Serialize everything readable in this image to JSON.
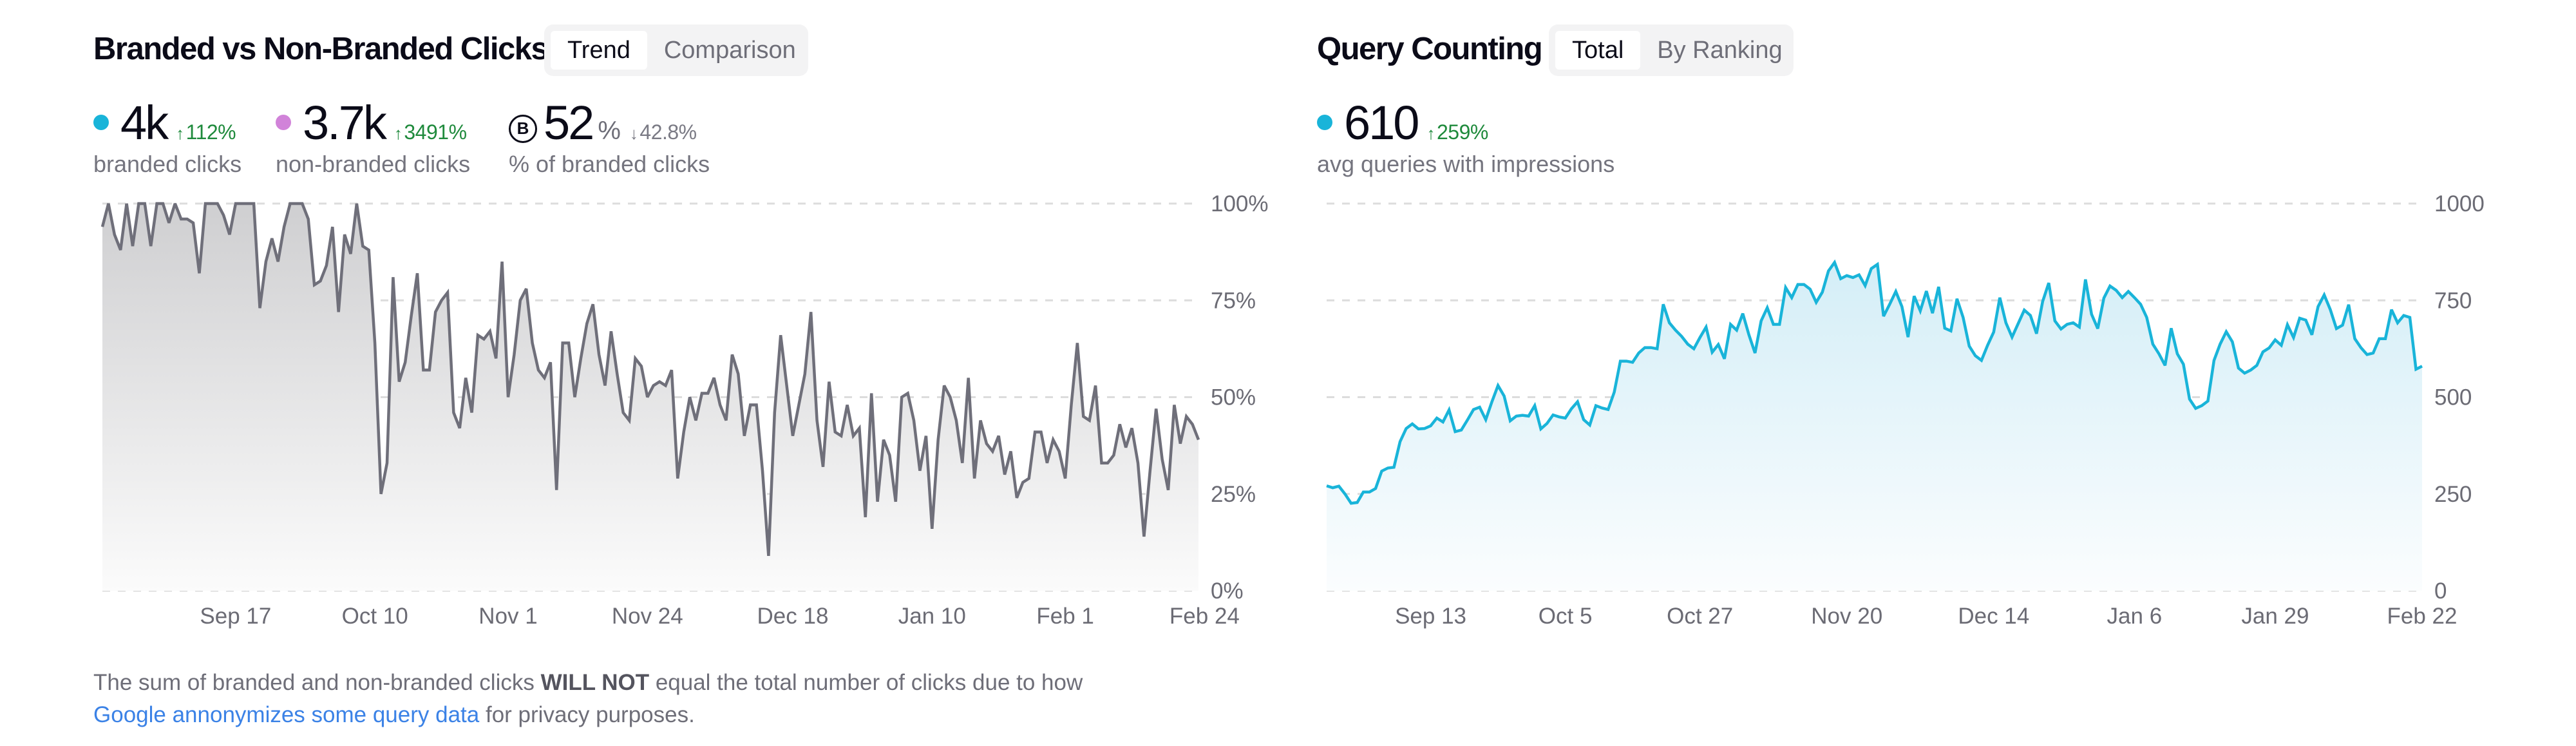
{
  "left_panel": {
    "title": "Branded vs Non-Branded Clicks",
    "tabs": [
      {
        "label": "Trend",
        "active": true
      },
      {
        "label": "Comparison",
        "active": false
      }
    ],
    "stats": [
      {
        "value": "4k",
        "delta": "112%",
        "delta_dir": "up",
        "label": "branded clicks",
        "dot_color": "#19b4d9"
      },
      {
        "value": "3.7k",
        "delta": "3491%",
        "delta_dir": "up",
        "label": "non-branded clicks",
        "dot_color": "#d183d9"
      },
      {
        "icon": "branded-b-icon",
        "icon_letter": "B",
        "value": "52",
        "unit": "%",
        "delta": "42.8%",
        "delta_dir": "down",
        "label": "% of branded clicks"
      }
    ],
    "arrow_up": "↑",
    "arrow_down": "↓"
  },
  "right_panel": {
    "title": "Query Counting",
    "tabs": [
      {
        "label": "Total",
        "active": true
      },
      {
        "label": "By Ranking",
        "active": false
      }
    ],
    "stats": [
      {
        "value": "610",
        "delta": "259%",
        "delta_dir": "up",
        "label": "avg queries with impressions",
        "dot_color": "#19b4d9"
      }
    ]
  },
  "footer": {
    "text_before": "The sum of branded and non-branded clicks ",
    "bold": "WILL NOT",
    "text_after": " equal the total number of clicks due to how",
    "link": "Google annonymizes some query data",
    "text_end": " for privacy purposes."
  },
  "colors": {
    "line_gray": "#6f6f7a",
    "line_cyan": "#19b4d9",
    "grid": "#dcdcdc",
    "link": "#3b82e6",
    "up": "#1f8a3c"
  },
  "chart_data": [
    {
      "type": "area",
      "title": "Branded vs Non-Branded Clicks",
      "ylabel": "% of branded clicks",
      "y_axis_position": "right",
      "ylim": [
        0,
        100
      ],
      "yticks": [
        0,
        25,
        50,
        75,
        100
      ],
      "ytick_labels": [
        "0%",
        "25%",
        "50%",
        "75%",
        "100%"
      ],
      "xtick_labels": [
        "Sep 17",
        "Oct 10",
        "Nov 1",
        "Nov 24",
        "Dec 18",
        "Jan 10",
        "Feb 1",
        "Feb 24"
      ],
      "xtick_index": [
        22,
        45,
        67,
        90,
        114,
        137,
        159,
        182
      ],
      "grid": true,
      "legend": "none",
      "series": [
        {
          "name": "% of branded clicks",
          "color": "#6f6f7a",
          "values": [
            94,
            100,
            92,
            88,
            100,
            89,
            100,
            100,
            89,
            100,
            100,
            95,
            100,
            96,
            96,
            95,
            82,
            100,
            100,
            100,
            97,
            92,
            100,
            100,
            100,
            100,
            73,
            85,
            91,
            85,
            94,
            100,
            100,
            100,
            96,
            79,
            80,
            84,
            94,
            72,
            92,
            87,
            100,
            89,
            88,
            64,
            25,
            33,
            81,
            54,
            59,
            71,
            82,
            57,
            57,
            72,
            75,
            77,
            46,
            42,
            55,
            46,
            66,
            65,
            67,
            60,
            85,
            50,
            61,
            75,
            78,
            64,
            57,
            55,
            59,
            26,
            64,
            64,
            50,
            60,
            69,
            74,
            61,
            53,
            67,
            56,
            46,
            44,
            60,
            58,
            50,
            53,
            54,
            53,
            57,
            29,
            41,
            50,
            44,
            51,
            51,
            55,
            48,
            44,
            61,
            56,
            40,
            48,
            48,
            31,
            9,
            46,
            66,
            53,
            40,
            48,
            56,
            72,
            44,
            32,
            54,
            41,
            40,
            48,
            40,
            42,
            19,
            51,
            23,
            39,
            35,
            23,
            50,
            51,
            44,
            31,
            40,
            16,
            39,
            53,
            50,
            44,
            33,
            55,
            29,
            44,
            38,
            36,
            40,
            30,
            36,
            24,
            28,
            29,
            41,
            41,
            33,
            39,
            36,
            29,
            48,
            64,
            45,
            44,
            53,
            33,
            33,
            35,
            43,
            37,
            42,
            33,
            14,
            31,
            47,
            34,
            26,
            48,
            38,
            45,
            43,
            39
          ]
        }
      ]
    },
    {
      "type": "area",
      "title": "Query Counting",
      "ylabel": "avg queries with impressions",
      "y_axis_position": "right",
      "ylim": [
        0,
        1000
      ],
      "yticks": [
        0,
        250,
        500,
        750,
        1000
      ],
      "ytick_labels": [
        "0",
        "250",
        "500",
        "750",
        "1000"
      ],
      "xtick_labels": [
        "Sep 13",
        "Oct 5",
        "Oct 27",
        "Nov 20",
        "Dec 14",
        "Jan 6",
        "Jan 29",
        "Feb 22"
      ],
      "xtick_index": [
        17,
        39,
        61,
        85,
        109,
        132,
        155,
        179
      ],
      "grid": true,
      "legend": "none",
      "series": [
        {
          "name": "avg queries with impressions",
          "color": "#19b4d9",
          "values": [
            271,
            266,
            270,
            250,
            226,
            228,
            255,
            255,
            264,
            309,
            317,
            319,
            385,
            419,
            431,
            418,
            419,
            426,
            446,
            436,
            467,
            411,
            415,
            441,
            468,
            474,
            442,
            488,
            530,
            503,
            439,
            451,
            453,
            451,
            478,
            418,
            432,
            454,
            449,
            446,
            470,
            488,
            442,
            428,
            478,
            472,
            468,
            513,
            593,
            593,
            590,
            614,
            628,
            628,
            625,
            740,
            692,
            673,
            657,
            637,
            625,
            654,
            681,
            616,
            636,
            599,
            688,
            673,
            716,
            661,
            614,
            697,
            731,
            688,
            688,
            783,
            757,
            791,
            791,
            779,
            745,
            771,
            826,
            848,
            806,
            814,
            809,
            816,
            788,
            832,
            843,
            709,
            740,
            773,
            734,
            655,
            761,
            723,
            774,
            717,
            785,
            678,
            671,
            754,
            706,
            632,
            607,
            595,
            634,
            668,
            757,
            692,
            655,
            690,
            725,
            711,
            664,
            747,
            795,
            697,
            676,
            688,
            692,
            681,
            804,
            714,
            677,
            756,
            787,
            776,
            757,
            773,
            757,
            740,
            706,
            637,
            612,
            582,
            678,
            612,
            585,
            495,
            471,
            478,
            490,
            595,
            637,
            669,
            643,
            575,
            562,
            570,
            582,
            617,
            627,
            648,
            634,
            687,
            654,
            704,
            699,
            661,
            734,
            764,
            726,
            677,
            686,
            739,
            651,
            628,
            610,
            614,
            651,
            651,
            726,
            692,
            711,
            706,
            572,
            580
          ]
        }
      ]
    }
  ]
}
